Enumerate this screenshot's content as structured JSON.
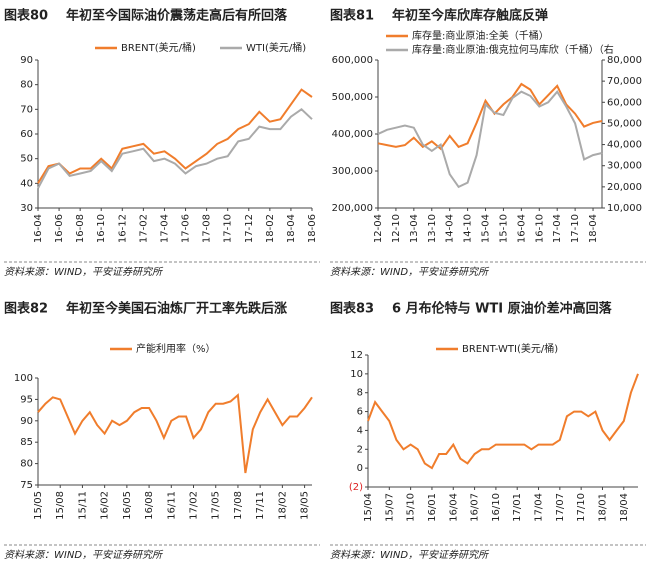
{
  "chart_data": [
    {
      "type": "line",
      "label": "图表80",
      "title": "年初至今国际油价震荡走高后有所回落",
      "source": "资料来源：WIND，平安证券研究所",
      "categories": [
        "16-04",
        null,
        "16-06",
        null,
        "16-08",
        null,
        "16-10",
        null,
        "16-12",
        null,
        "17-02",
        null,
        "17-04",
        null,
        "17-06",
        null,
        "17-08",
        null,
        "17-10",
        null,
        "17-12",
        null,
        "18-02",
        null,
        "18-04",
        null,
        "18-06"
      ],
      "series": [
        {
          "name": "BRENT(美元/桶)",
          "color": "#f07d2c",
          "values": [
            40,
            47,
            48,
            44,
            46,
            46,
            50,
            46,
            54,
            55,
            56,
            52,
            53,
            50,
            46,
            49,
            52,
            56,
            58,
            62,
            64,
            69,
            65,
            66,
            72,
            78,
            75
          ]
        },
        {
          "name": "WTI(美元/桶)",
          "color": "#aaaaaa",
          "values": [
            38,
            46,
            48,
            43,
            44,
            45,
            49,
            45,
            52,
            53,
            54,
            49,
            50,
            48,
            44,
            47,
            48,
            50,
            51,
            57,
            58,
            63,
            62,
            62,
            67,
            70,
            66
          ]
        }
      ],
      "ylim": [
        30,
        90
      ],
      "yticks": [
        30,
        40,
        50,
        60,
        70,
        80,
        90
      ]
    },
    {
      "type": "line",
      "label": "图表81",
      "title": "年初至今库欣库存触底反弹",
      "source": "资料来源：WIND，平安证券研究所",
      "categories": [
        "12-04",
        null,
        "12-10",
        null,
        "13-04",
        null,
        "13-10",
        null,
        "14-04",
        null,
        "14-10",
        null,
        "15-04",
        null,
        "15-10",
        null,
        "16-04",
        null,
        "16-10",
        null,
        "17-04",
        null,
        "17-10",
        null,
        "18-04",
        null
      ],
      "series": [
        {
          "name": "库存量:商业原油:全美（千桶）",
          "color": "#f07d2c",
          "values": [
            375000,
            370000,
            365000,
            370000,
            390000,
            365000,
            380000,
            360000,
            395000,
            365000,
            375000,
            430000,
            490000,
            455000,
            480000,
            500000,
            535000,
            520000,
            480000,
            505000,
            530000,
            480000,
            455000,
            420000,
            430000,
            435000
          ]
        },
        {
          "name": "库存量:商业原油:俄克拉何马库欣（千桶）（右",
          "color": "#aaaaaa",
          "axis": "y2",
          "values": [
            45000,
            47000,
            48000,
            49000,
            48000,
            40000,
            37000,
            40000,
            26000,
            20000,
            22000,
            35000,
            59000,
            55000,
            54000,
            62000,
            65000,
            63000,
            58000,
            60000,
            65000,
            58000,
            50000,
            33000,
            35000,
            36000
          ]
        }
      ],
      "ylim": [
        200000,
        600000
      ],
      "yticks": [
        {
          "value": 200000,
          "label": "200,000"
        },
        {
          "value": 300000,
          "label": "300,000"
        },
        {
          "value": 400000,
          "label": "400,000"
        },
        {
          "value": 500000,
          "label": "500,000"
        },
        {
          "value": 600000,
          "label": "600,000"
        }
      ],
      "y2lim": [
        10000,
        80000
      ],
      "y2ticks": [
        {
          "value": 10000,
          "label": "10,000"
        },
        {
          "value": 20000,
          "label": "20,000"
        },
        {
          "value": 30000,
          "label": "30,000"
        },
        {
          "value": 40000,
          "label": "40,000"
        },
        {
          "value": 50000,
          "label": "50,000"
        },
        {
          "value": 60000,
          "label": "60,000"
        },
        {
          "value": 70000,
          "label": "70,000"
        },
        {
          "value": 80000,
          "label": "80,000"
        }
      ]
    },
    {
      "type": "line",
      "label": "图表82",
      "title": "年初至今美国石油炼厂开工率先跌后涨",
      "source": "资料来源：WIND，平安证券研究所",
      "categories": [
        "15/05",
        null,
        null,
        "15/08",
        null,
        null,
        "15/11",
        null,
        null,
        "16/02",
        null,
        null,
        "16/05",
        null,
        null,
        "16/08",
        null,
        null,
        "16/11",
        null,
        null,
        "17/02",
        null,
        null,
        "17/05",
        null,
        null,
        "17/08",
        null,
        null,
        "17/11",
        null,
        null,
        "18/02",
        null,
        null,
        "18/05",
        null
      ],
      "series": [
        {
          "name": "产能利用率（%）",
          "color": "#f07d2c",
          "values": [
            92,
            94,
            95.5,
            95,
            91,
            87,
            90,
            92,
            89,
            87,
            90,
            89,
            90,
            92,
            93,
            93,
            90,
            86,
            90,
            91,
            91,
            86,
            88,
            92,
            94,
            94,
            94.5,
            96,
            77.8,
            88,
            92,
            95,
            92,
            89,
            91,
            91,
            93,
            95.5
          ]
        }
      ],
      "ylim": [
        75,
        100
      ],
      "yticks": [
        75,
        80,
        85,
        90,
        95,
        100
      ]
    },
    {
      "type": "line",
      "label": "图表83",
      "title": "6 月布伦特与 WTI 原油价差冲高回落",
      "source": "资料来源：WIND，平安证券研究所",
      "categories": [
        "15/04",
        null,
        null,
        "15/07",
        null,
        null,
        "15/10",
        null,
        null,
        "16/01",
        null,
        null,
        "16/04",
        null,
        null,
        "16/07",
        null,
        null,
        "16/10",
        null,
        null,
        "17/01",
        null,
        null,
        "17/04",
        null,
        null,
        "17/07",
        null,
        null,
        "17/10",
        null,
        null,
        "18/01",
        null,
        null,
        "18/04",
        null,
        null
      ],
      "series": [
        {
          "name": "BRENT-WTI(美元/桶)",
          "color": "#f07d2c",
          "values": [
            5,
            7,
            6,
            5,
            3,
            2,
            2.5,
            2,
            0.5,
            0,
            1.5,
            1.5,
            2.5,
            1,
            0.5,
            1.5,
            2,
            2,
            2.5,
            2.5,
            2.5,
            2.5,
            2.5,
            2,
            2.5,
            2.5,
            2.5,
            3,
            5.5,
            6,
            6,
            5.5,
            6,
            4,
            3,
            4,
            5,
            8,
            10
          ]
        }
      ],
      "ylim": [
        -2,
        12
      ],
      "yticks": [
        {
          "value": -2,
          "label": "(2)"
        },
        0,
        2,
        4,
        6,
        8,
        10,
        12
      ]
    }
  ]
}
